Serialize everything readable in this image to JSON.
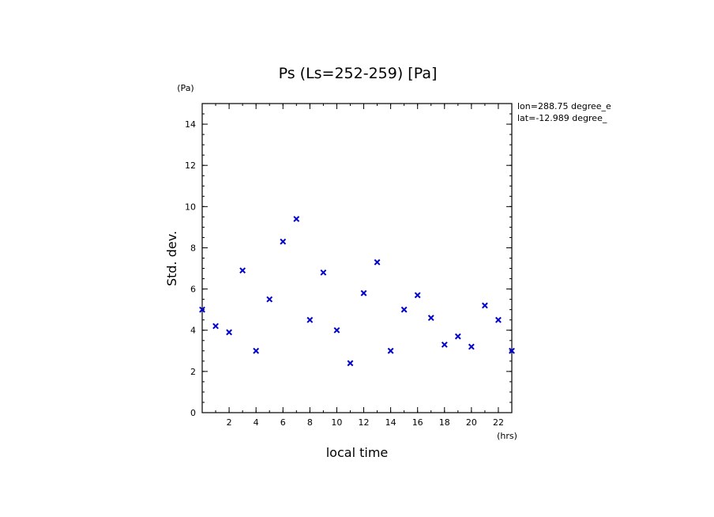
{
  "chart_data": {
    "type": "scatter",
    "title": "Ps (Ls=252-259) [Pa]",
    "xlabel": "local time",
    "ylabel": "Std. dev.",
    "x_unit": "(hrs)",
    "y_unit": "(Pa)",
    "xlim": [
      0,
      23
    ],
    "ylim": [
      0,
      15
    ],
    "x_ticks": [
      2,
      4,
      6,
      8,
      10,
      12,
      14,
      16,
      18,
      20,
      22
    ],
    "y_ticks": [
      0,
      2,
      4,
      6,
      8,
      10,
      12,
      14
    ],
    "marker": "x",
    "marker_color": "#0000cc",
    "annotations": [
      "lon=288.75 degree_e",
      "lat=-12.989 degree_"
    ],
    "series": [
      {
        "x": [
          0,
          1,
          2,
          3,
          4,
          5,
          6,
          7,
          8,
          9,
          10,
          11,
          12,
          13,
          14,
          15,
          16,
          17,
          18,
          19,
          20,
          21,
          22,
          23
        ],
        "y": [
          5.0,
          4.2,
          3.9,
          6.9,
          3.0,
          5.5,
          8.3,
          9.4,
          4.5,
          6.8,
          4.0,
          2.4,
          5.8,
          7.3,
          3.0,
          5.0,
          5.7,
          4.6,
          3.3,
          3.7,
          3.2,
          5.2,
          4.5,
          3.0
        ]
      }
    ]
  }
}
